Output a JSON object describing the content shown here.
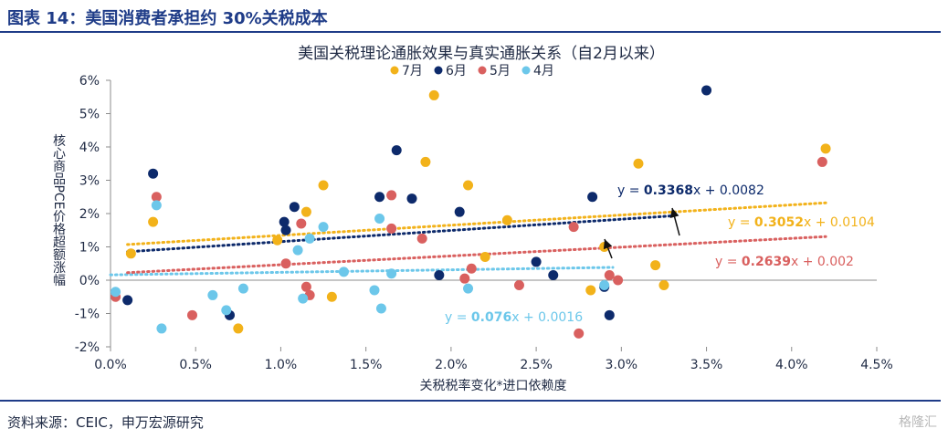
{
  "header": {
    "title": "图表 14：美国消费者承担约 30%关税成本"
  },
  "footer": {
    "source": "资料来源：CEIC，申万宏源研究",
    "watermark": "格隆汇"
  },
  "colors": {
    "brand": "#1f3c88",
    "jul": "#f2b21a",
    "jun": "#0d2a6b",
    "may": "#d9605f",
    "apr": "#6cc7ea"
  },
  "chart_data": {
    "type": "scatter",
    "title": "美国关税理论通胀效果与真实通胀关系（自2月以来）",
    "xlabel": "关税税率变化*进口依赖度",
    "ylabel": "核心商品PCE价格超额涨幅",
    "xlim": [
      0.0,
      0.045
    ],
    "ylim": [
      -0.02,
      0.06
    ],
    "x_ticks": [
      "0.0%",
      "0.5%",
      "1.0%",
      "1.5%",
      "2.0%",
      "2.5%",
      "3.0%",
      "3.5%",
      "4.0%",
      "4.5%"
    ],
    "y_ticks": [
      "-2%",
      "-1%",
      "0%",
      "1%",
      "2%",
      "3%",
      "4%",
      "5%",
      "6%"
    ],
    "legend_position": "top-center",
    "series": [
      {
        "name": "7月",
        "color": "#f2b21a",
        "trend_xrange": [
          0.001,
          0.042
        ],
        "trend": {
          "slope": 0.3052,
          "intercept": 0.0104,
          "equation_prefix": "y = ",
          "slope_text": "0.3052",
          "suffix": "x + 0.0104"
        },
        "points": [
          [
            0.0012,
            0.008
          ],
          [
            0.0025,
            0.0175
          ],
          [
            0.0075,
            -0.0145
          ],
          [
            0.0098,
            0.012
          ],
          [
            0.0115,
            0.0205
          ],
          [
            0.0125,
            0.0285
          ],
          [
            0.013,
            -0.005
          ],
          [
            0.0185,
            0.0355
          ],
          [
            0.019,
            0.0555
          ],
          [
            0.021,
            0.0285
          ],
          [
            0.022,
            0.007
          ],
          [
            0.0233,
            0.018
          ],
          [
            0.0282,
            -0.003
          ],
          [
            0.029,
            0.01
          ],
          [
            0.031,
            0.035
          ],
          [
            0.032,
            0.0045
          ],
          [
            0.0325,
            -0.0015
          ],
          [
            0.042,
            0.0395
          ]
        ]
      },
      {
        "name": "6月",
        "color": "#0d2a6b",
        "trend_xrange": [
          0.001,
          0.033
        ],
        "trend": {
          "slope": 0.3368,
          "intercept": 0.0082,
          "equation_prefix": "y = ",
          "slope_text": "0.3368",
          "suffix": "x + 0.0082"
        },
        "points": [
          [
            0.001,
            -0.006
          ],
          [
            0.0025,
            0.032
          ],
          [
            0.007,
            -0.0105
          ],
          [
            0.0102,
            0.0175
          ],
          [
            0.0103,
            0.015
          ],
          [
            0.0108,
            0.022
          ],
          [
            0.0158,
            0.025
          ],
          [
            0.0168,
            0.039
          ],
          [
            0.0177,
            0.0245
          ],
          [
            0.0193,
            0.0015
          ],
          [
            0.0205,
            0.0205
          ],
          [
            0.025,
            0.0055
          ],
          [
            0.026,
            0.0015
          ],
          [
            0.0283,
            0.025
          ],
          [
            0.029,
            -0.002
          ],
          [
            0.0293,
            -0.0105
          ],
          [
            0.035,
            0.057
          ]
        ]
      },
      {
        "name": "5月",
        "color": "#d9605f",
        "trend_xrange": [
          0.001,
          0.042
        ],
        "trend": {
          "slope": 0.2639,
          "intercept": 0.002,
          "equation_prefix": "y = ",
          "slope_text": "0.2639",
          "suffix": "x + 0.002"
        },
        "points": [
          [
            0.0003,
            -0.005
          ],
          [
            0.0027,
            0.025
          ],
          [
            0.0048,
            -0.0105
          ],
          [
            0.0103,
            0.005
          ],
          [
            0.0112,
            0.017
          ],
          [
            0.0115,
            -0.002
          ],
          [
            0.0117,
            -0.0045
          ],
          [
            0.0165,
            0.0255
          ],
          [
            0.0165,
            0.0155
          ],
          [
            0.0183,
            0.0125
          ],
          [
            0.0208,
            0.0005
          ],
          [
            0.0212,
            0.0035
          ],
          [
            0.024,
            -0.0015
          ],
          [
            0.0272,
            0.016
          ],
          [
            0.0275,
            -0.016
          ],
          [
            0.0293,
            0.0015
          ],
          [
            0.0298,
            0.0
          ],
          [
            0.0418,
            0.0355
          ]
        ]
      },
      {
        "name": "4月",
        "color": "#6cc7ea",
        "trend_xrange": [
          0.0,
          0.0295
        ],
        "trend": {
          "slope": 0.076,
          "intercept": 0.0016,
          "equation_prefix": "y = ",
          "slope_text": "0.076",
          "suffix": "x + 0.0016"
        },
        "points": [
          [
            0.0003,
            -0.0035
          ],
          [
            0.0027,
            0.0225
          ],
          [
            0.003,
            -0.0145
          ],
          [
            0.006,
            -0.0045
          ],
          [
            0.0068,
            -0.009
          ],
          [
            0.0078,
            -0.0025
          ],
          [
            0.011,
            0.009
          ],
          [
            0.0113,
            -0.0055
          ],
          [
            0.0117,
            0.0125
          ],
          [
            0.0125,
            0.016
          ],
          [
            0.0137,
            0.0025
          ],
          [
            0.0155,
            -0.003
          ],
          [
            0.0158,
            0.0185
          ],
          [
            0.0159,
            -0.0085
          ],
          [
            0.0165,
            0.002
          ],
          [
            0.021,
            -0.0025
          ],
          [
            0.029,
            -0.0015
          ]
        ]
      }
    ]
  }
}
